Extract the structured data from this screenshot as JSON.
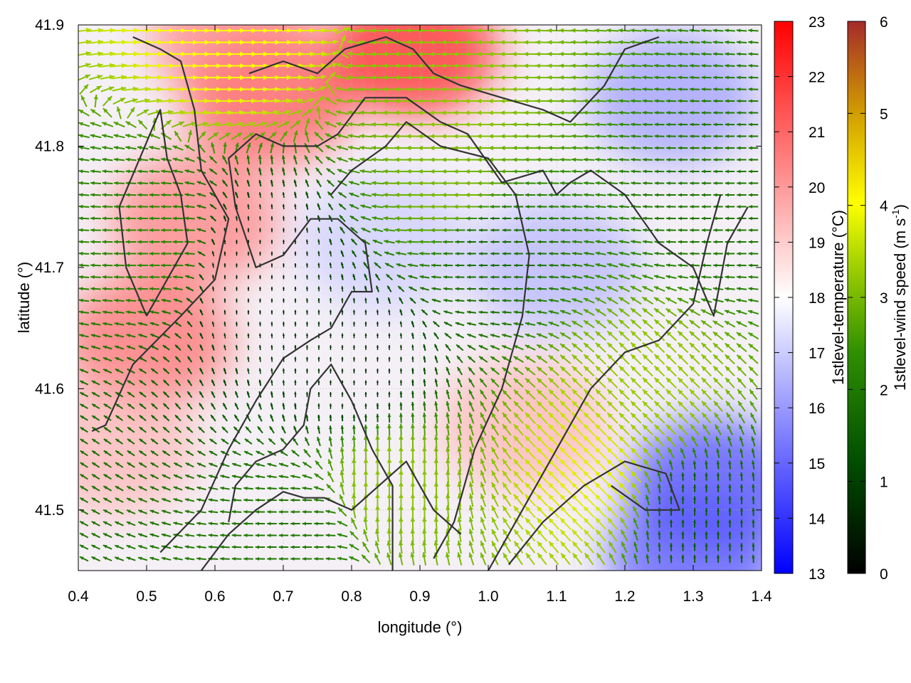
{
  "chart_data": {
    "type": "heatmap",
    "subtype": "temperature field with wind-vector overlay and contour lines",
    "xlabel": "longitude (°)",
    "ylabel": "latitude (°)",
    "xlim": [
      0.4,
      1.4
    ],
    "ylim": [
      41.45,
      41.9
    ],
    "xticks": [
      "0.4",
      "0.5",
      "0.6",
      "0.7",
      "0.8",
      "0.9",
      "1.0",
      "1.1",
      "1.2",
      "1.3",
      "1.4"
    ],
    "yticks": [
      "41.5",
      "41.6",
      "41.7",
      "41.8",
      "41.9"
    ],
    "grid": true,
    "colorbars": [
      {
        "label": "1stlevel-temperature (°C)",
        "range": [
          13,
          23
        ],
        "ticks": [
          "13",
          "14",
          "15",
          "16",
          "17",
          "18",
          "19",
          "20",
          "21",
          "22",
          "23"
        ],
        "colors": [
          "#0000ff",
          "#ffffff",
          "#ff0000"
        ]
      },
      {
        "label_main": "1stlevel-wind speed (m s",
        "label_sup": "-1",
        "label_end": ")",
        "range": [
          0,
          6
        ],
        "ticks": [
          "0",
          "1",
          "2",
          "3",
          "4",
          "5",
          "6"
        ],
        "colors": [
          "#000000",
          "#004d00",
          "#2f8f00",
          "#9acd00",
          "#ffff00",
          "#d2a000",
          "#a52a2a"
        ]
      }
    ],
    "temperature_features": [
      {
        "lon": 0.57,
        "lat": 41.74,
        "temp": 20.6
      },
      {
        "lon": 0.5,
        "lat": 41.64,
        "temp": 21.0
      },
      {
        "lon": 0.68,
        "lat": 41.84,
        "temp": 21.5
      },
      {
        "lon": 0.89,
        "lat": 41.88,
        "temp": 22.5
      },
      {
        "lon": 0.63,
        "lat": 41.89,
        "temp": 20.5
      },
      {
        "lon": 0.45,
        "lat": 41.55,
        "temp": 19.5
      },
      {
        "lon": 1.05,
        "lat": 41.57,
        "temp": 19.5
      },
      {
        "lon": 1.33,
        "lat": 41.52,
        "temp": 14.3
      },
      {
        "lon": 1.3,
        "lat": 41.46,
        "temp": 14.6
      },
      {
        "lon": 1.27,
        "lat": 41.84,
        "temp": 16.0
      },
      {
        "lon": 1.1,
        "lat": 41.7,
        "temp": 16.5
      },
      {
        "lon": 0.85,
        "lat": 41.72,
        "temp": 17.0
      }
    ],
    "wind_features": [
      {
        "lon": 0.52,
        "lat": 41.72,
        "speed": 2.3,
        "dir": "from east"
      },
      {
        "lon": 0.95,
        "lat": 41.84,
        "speed": 3.2,
        "dir": "from east"
      },
      {
        "lon": 0.95,
        "lat": 41.76,
        "speed": 3.0,
        "dir": "from east"
      },
      {
        "lon": 1.16,
        "lat": 41.53,
        "speed": 3.8,
        "dir": "from south-east"
      },
      {
        "lon": 1.24,
        "lat": 41.59,
        "speed": 3.3,
        "dir": "from south-east"
      },
      {
        "lon": 0.85,
        "lat": 41.52,
        "speed": 3.2,
        "dir": "from south"
      },
      {
        "lon": 0.72,
        "lat": 41.48,
        "speed": 2.0,
        "dir": "from east"
      },
      {
        "lon": 1.0,
        "lat": 41.72,
        "speed": 1.8,
        "dir": "from east"
      },
      {
        "lon": 0.8,
        "lat": 41.62,
        "speed": 0.7,
        "dir": "variable"
      },
      {
        "lon": 0.65,
        "lat": 41.7,
        "speed": 0.5,
        "dir": "variable"
      },
      {
        "lon": 1.35,
        "lat": 41.75,
        "speed": 2.0,
        "dir": "from east"
      },
      {
        "lon": 1.3,
        "lat": 41.5,
        "speed": 1.5,
        "dir": "from south"
      },
      {
        "lon": 0.62,
        "lat": 41.89,
        "speed": 4.0,
        "dir": "from west"
      }
    ],
    "contours": [
      [
        [
          0.42,
          41.565
        ],
        [
          0.44,
          41.57
        ],
        [
          0.48,
          41.62
        ],
        [
          0.55,
          41.66
        ],
        [
          0.6,
          41.69
        ],
        [
          0.62,
          41.74
        ],
        [
          0.58,
          41.78
        ],
        [
          0.57,
          41.83
        ],
        [
          0.55,
          41.87
        ],
        [
          0.52,
          41.88
        ],
        [
          0.48,
          41.89
        ]
      ],
      [
        [
          0.5,
          41.66
        ],
        [
          0.47,
          41.7
        ],
        [
          0.46,
          41.75
        ],
        [
          0.49,
          41.79
        ],
        [
          0.52,
          41.83
        ],
        [
          0.53,
          41.79
        ],
        [
          0.55,
          41.76
        ],
        [
          0.56,
          41.72
        ],
        [
          0.52,
          41.68
        ],
        [
          0.5,
          41.66
        ]
      ],
      [
        [
          0.52,
          41.465
        ],
        [
          0.58,
          41.5
        ],
        [
          0.62,
          41.55
        ],
        [
          0.66,
          41.59
        ],
        [
          0.7,
          41.625
        ],
        [
          0.74,
          41.64
        ],
        [
          0.77,
          41.65
        ],
        [
          0.8,
          41.68
        ],
        [
          0.83,
          41.68
        ],
        [
          0.82,
          41.72
        ],
        [
          0.78,
          41.74
        ],
        [
          0.74,
          41.74
        ],
        [
          0.7,
          41.71
        ],
        [
          0.66,
          41.7
        ],
        [
          0.63,
          41.75
        ],
        [
          0.62,
          41.79
        ],
        [
          0.66,
          41.81
        ],
        [
          0.7,
          41.8
        ],
        [
          0.75,
          41.8
        ],
        [
          0.78,
          41.81
        ],
        [
          0.82,
          41.84
        ],
        [
          0.88,
          41.84
        ],
        [
          0.93,
          41.82
        ],
        [
          0.97,
          41.81
        ],
        [
          1.02,
          41.77
        ],
        [
          1.08,
          41.78
        ],
        [
          1.1,
          41.76
        ],
        [
          1.12,
          41.77
        ],
        [
          1.15,
          41.78
        ],
        [
          1.2,
          41.76
        ],
        [
          1.25,
          41.72
        ],
        [
          1.3,
          41.7
        ],
        [
          1.33,
          41.66
        ],
        [
          1.35,
          41.72
        ],
        [
          1.38,
          41.75
        ]
      ],
      [
        [
          0.86,
          41.45
        ],
        [
          0.86,
          41.52
        ],
        [
          0.83,
          41.55
        ],
        [
          0.8,
          41.59
        ],
        [
          0.77,
          41.62
        ],
        [
          0.74,
          41.6
        ],
        [
          0.73,
          41.57
        ],
        [
          0.7,
          41.55
        ],
        [
          0.66,
          41.54
        ],
        [
          0.63,
          41.52
        ],
        [
          0.62,
          41.49
        ]
      ],
      [
        [
          0.92,
          41.46
        ],
        [
          0.95,
          41.49
        ],
        [
          0.98,
          41.55
        ],
        [
          1.02,
          41.6
        ],
        [
          1.05,
          41.66
        ],
        [
          1.06,
          41.71
        ],
        [
          1.04,
          41.76
        ],
        [
          1.0,
          41.79
        ],
        [
          0.93,
          41.8
        ],
        [
          0.88,
          41.82
        ],
        [
          0.85,
          41.8
        ],
        [
          0.8,
          41.78
        ],
        [
          0.77,
          41.76
        ]
      ],
      [
        [
          1.0,
          41.45
        ],
        [
          1.05,
          41.5
        ],
        [
          1.1,
          41.55
        ],
        [
          1.15,
          41.6
        ],
        [
          1.2,
          41.63
        ],
        [
          1.25,
          41.64
        ],
        [
          1.3,
          41.67
        ],
        [
          1.32,
          41.72
        ],
        [
          1.34,
          41.76
        ]
      ],
      [
        [
          1.03,
          41.455
        ],
        [
          1.08,
          41.49
        ],
        [
          1.14,
          41.52
        ],
        [
          1.2,
          41.54
        ],
        [
          1.26,
          41.53
        ],
        [
          1.28,
          41.5
        ],
        [
          1.23,
          41.5
        ],
        [
          1.18,
          41.52
        ]
      ],
      [
        [
          0.65,
          41.86
        ],
        [
          0.7,
          41.87
        ],
        [
          0.75,
          41.86
        ],
        [
          0.79,
          41.88
        ],
        [
          0.85,
          41.89
        ],
        [
          0.89,
          41.88
        ],
        [
          0.92,
          41.86
        ],
        [
          0.96,
          41.85
        ],
        [
          1.02,
          41.84
        ],
        [
          1.08,
          41.83
        ],
        [
          1.12,
          41.82
        ],
        [
          1.17,
          41.85
        ],
        [
          1.2,
          41.88
        ],
        [
          1.25,
          41.89
        ]
      ],
      [
        [
          0.58,
          41.45
        ],
        [
          0.62,
          41.48
        ],
        [
          0.66,
          41.5
        ],
        [
          0.7,
          41.515
        ],
        [
          0.73,
          41.51
        ],
        [
          0.76,
          41.51
        ],
        [
          0.8,
          41.5
        ],
        [
          0.84,
          41.52
        ],
        [
          0.88,
          41.54
        ],
        [
          0.9,
          41.52
        ],
        [
          0.92,
          41.5
        ],
        [
          0.96,
          41.48
        ]
      ]
    ]
  }
}
